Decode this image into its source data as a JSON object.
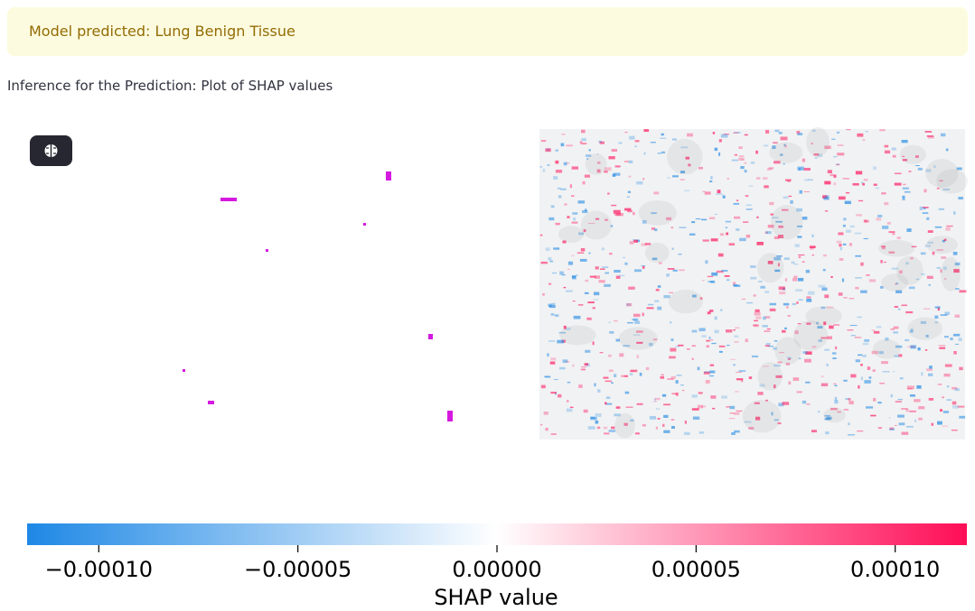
{
  "alert": {
    "text": "Model predicted: Lung Benign Tissue"
  },
  "caption": "Inference for the Prediction: Plot of SHAP values",
  "chart_data": {
    "type": "colorbar",
    "xlabel": "SHAP value",
    "xlim": [
      -0.000118,
      0.000118
    ],
    "xticks": [
      {
        "value": -0.0001,
        "label": "−0.00010"
      },
      {
        "value": -5e-05,
        "label": "−0.00005"
      },
      {
        "value": 0,
        "label": "0.00000"
      },
      {
        "value": 5e-05,
        "label": "0.00005"
      },
      {
        "value": 0.0001,
        "label": "0.00010"
      }
    ],
    "colormap": [
      "#1e88e5",
      "#ffffff",
      "#ff0d57"
    ]
  }
}
